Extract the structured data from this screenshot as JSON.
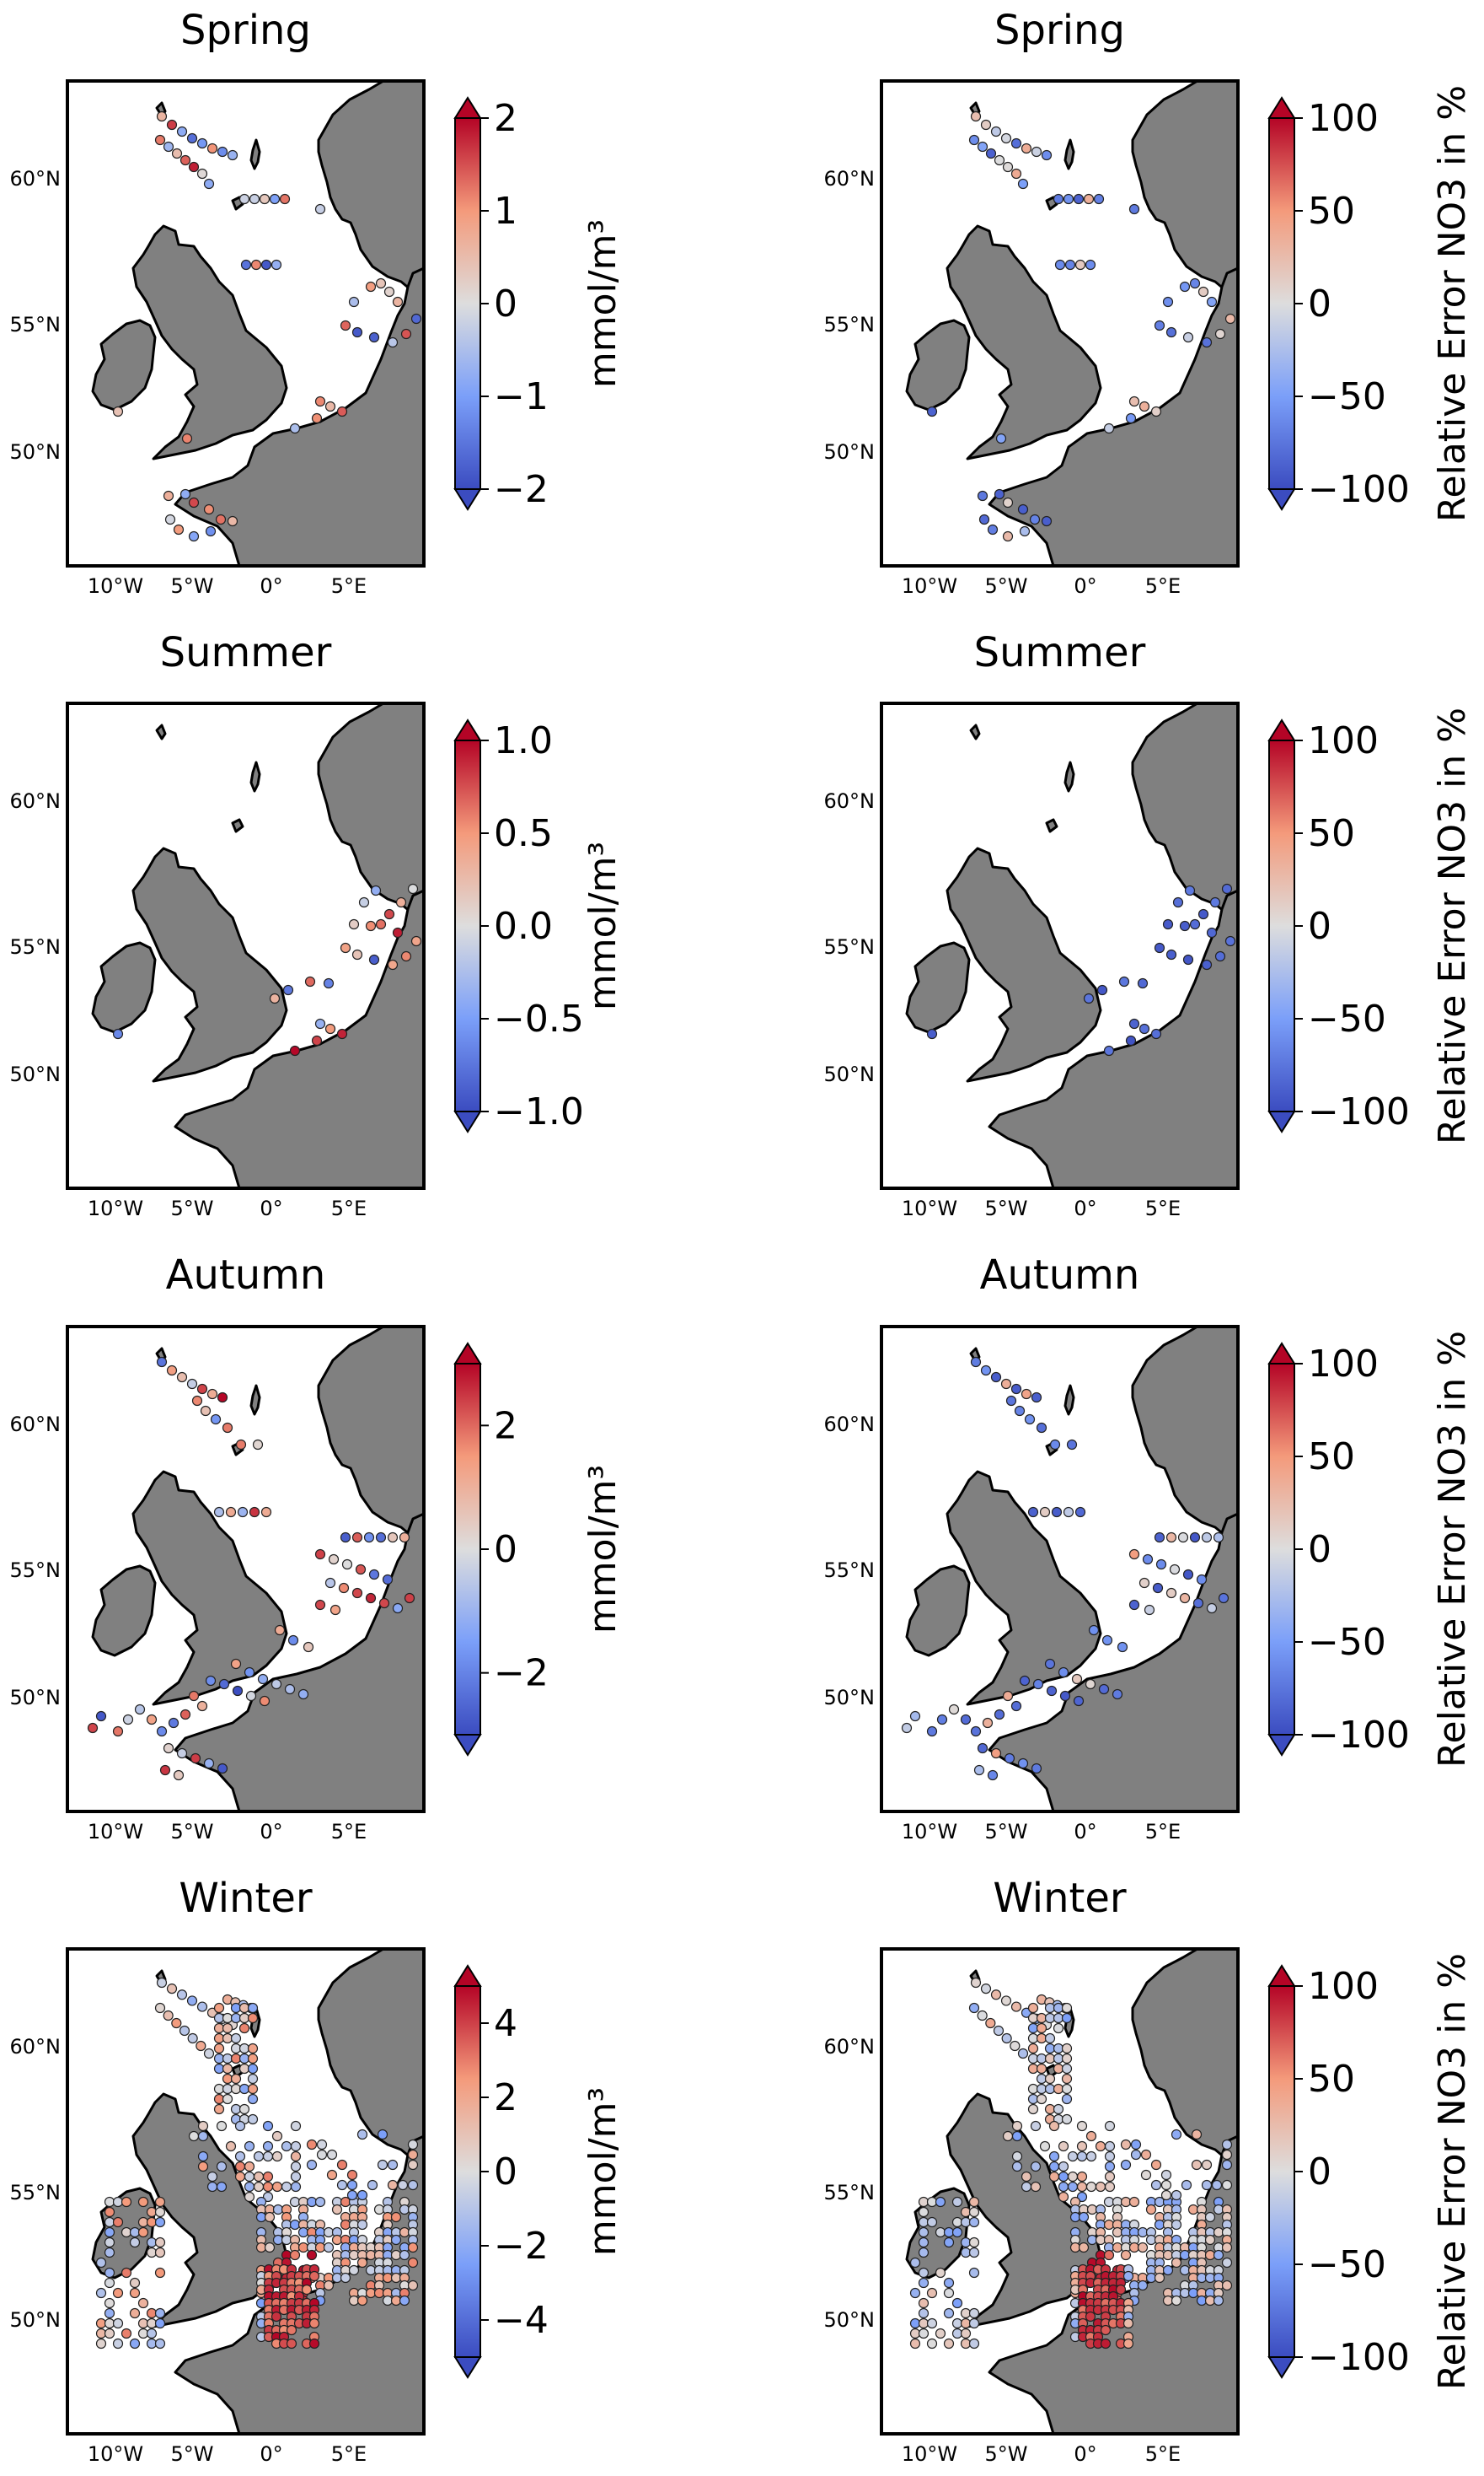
{
  "figure": {
    "lon_ticks": [
      "10°W",
      "5°W",
      "0°",
      "5°E"
    ],
    "lat_ticks": [
      "60°N",
      "55°N",
      "50°N"
    ],
    "colormap": "coolwarm",
    "colors": {
      "land": "#808080",
      "ocean": "#ffffff",
      "cmap_low": "#3b4cc0",
      "cmap_mid": "#dddddd",
      "cmap_high": "#b40426"
    }
  },
  "rows": [
    {
      "season": "Spring",
      "bias": {
        "title": "Spring",
        "cb_label": "mmol/m³",
        "cb_ticks": [
          "2",
          "1",
          "0",
          "−1",
          "−2"
        ],
        "vmin": -2,
        "vmax": 2
      },
      "rel": {
        "title": "Spring",
        "cb_label": "Relative Error NO3 in %",
        "cb_ticks": [
          "100",
          "50",
          "0",
          "−50",
          "−100"
        ],
        "vmin": -100,
        "vmax": 100
      }
    },
    {
      "season": "Summer",
      "bias": {
        "title": "Summer",
        "cb_label": "mmol/m³",
        "cb_ticks": [
          "1.0",
          "0.5",
          "0.0",
          "−0.5",
          "−1.0"
        ],
        "vmin": -1,
        "vmax": 1
      },
      "rel": {
        "title": "Summer",
        "cb_label": "Relative Error NO3 in %",
        "cb_ticks": [
          "100",
          "50",
          "0",
          "−50",
          "−100"
        ],
        "vmin": -100,
        "vmax": 100
      }
    },
    {
      "season": "Autumn",
      "bias": {
        "title": "Autumn",
        "cb_label": "mmol/m³",
        "cb_ticks": [
          "2",
          "0",
          "−2"
        ],
        "vmin": -3,
        "vmax": 3
      },
      "rel": {
        "title": "Autumn",
        "cb_label": "Relative Error NO3 in %",
        "cb_ticks": [
          "100",
          "50",
          "0",
          "−50",
          "−100"
        ],
        "vmin": -100,
        "vmax": 100
      }
    },
    {
      "season": "Winter",
      "bias": {
        "title": "Winter",
        "cb_label": "mmol/m³",
        "cb_ticks": [
          "4",
          "2",
          "0",
          "−2",
          "−4"
        ],
        "vmin": -5,
        "vmax": 5
      },
      "rel": {
        "title": "Winter",
        "cb_label": "Relative Error NO3 in %",
        "cb_ticks": [
          "100",
          "50",
          "0",
          "−50",
          "−100"
        ],
        "vmin": -100,
        "vmax": 100
      }
    }
  ]
}
